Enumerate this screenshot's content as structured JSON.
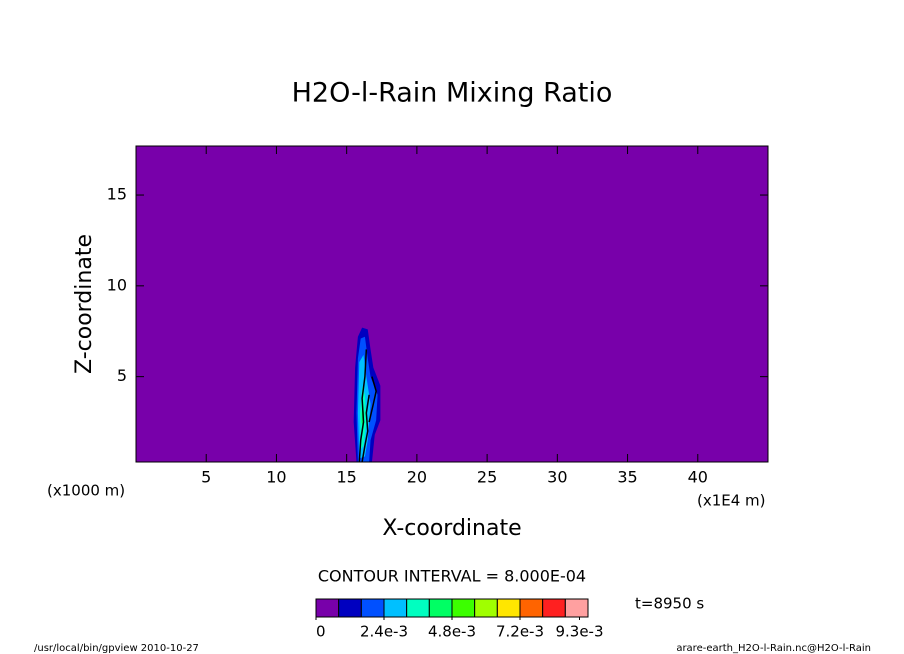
{
  "chart_data": {
    "type": "contour",
    "title": "H2O-l-Rain Mixing Ratio",
    "x_label": "X-coordinate",
    "y_label": "Z-coordinate",
    "x_unit_left": "(x1000 m)",
    "x_unit_right": "(x1E4 m)",
    "contour_interval": "CONTOUR INTERVAL = 8.000E-04",
    "time_label": "t=8950 s",
    "footer_left": "/usr/local/bin/gpview  2010-10-27",
    "footer_right": "arare-earth_H2O-l-Rain.nc@H2O-l-Rain",
    "xlim": [
      0,
      45
    ],
    "ylim": [
      0.3,
      17.7
    ],
    "xticks": [
      5,
      10,
      15,
      20,
      25,
      30,
      35,
      40
    ],
    "yticks": [
      5,
      10,
      15
    ],
    "colorbar": {
      "levels": [
        0,
        0.0008,
        0.0016,
        0.0024,
        0.0032,
        0.004,
        0.0048,
        0.0056,
        0.0064,
        0.0072,
        0.008,
        0.0088,
        0.0096
      ],
      "colors": [
        "#7800aa",
        "#0000c0",
        "#0050ff",
        "#00c0ff",
        "#00ffc0",
        "#00ff64",
        "#3cff00",
        "#a0ff00",
        "#ffe600",
        "#ff6400",
        "#ff2020",
        "#ffa0a0"
      ],
      "ticks": [
        {
          "value": 0,
          "label": "0"
        },
        {
          "value": 0.0024,
          "label": "2.4e-3"
        },
        {
          "value": 0.0048,
          "label": "4.8e-3"
        },
        {
          "value": 0.0072,
          "label": "7.2e-3"
        },
        {
          "value": 0.0093,
          "label": "9.3e-3"
        }
      ]
    },
    "contour_regions": [
      {
        "level": 1,
        "x": [
          15.7,
          15.5,
          15.6,
          15.8,
          16.1,
          16.5,
          16.7,
          16.9,
          17.4,
          17.4,
          17.0,
          16.8
        ],
        "y": [
          0.3,
          2.5,
          5.5,
          7.2,
          7.7,
          7.6,
          6.5,
          5.5,
          4.5,
          2.6,
          1.8,
          0.3
        ]
      },
      {
        "level": 2,
        "x": [
          15.8,
          15.7,
          15.8,
          16.0,
          16.3,
          16.5,
          16.7,
          17.2,
          17.1,
          16.7,
          16.6
        ],
        "y": [
          0.3,
          3,
          6,
          7.1,
          7.2,
          6,
          5,
          4,
          2.6,
          1.5,
          0.3
        ]
      },
      {
        "level": 3,
        "x": [
          15.9,
          15.8,
          15.9,
          16.2,
          16.4,
          16.7,
          16.5,
          16.3
        ],
        "y": [
          0.5,
          3,
          5.8,
          6.2,
          5,
          3.5,
          1.5,
          0.6
        ]
      },
      {
        "level": 4,
        "x": [
          16.0,
          15.95,
          16.1,
          16.3,
          16.4,
          16.2
        ],
        "y": [
          1,
          3,
          4.5,
          4,
          2.5,
          1.2
        ]
      },
      {
        "level": 5,
        "x": [
          16.05,
          16.1,
          16.25,
          16.2
        ],
        "y": [
          2.5,
          3.5,
          3,
          2.2
        ]
      }
    ],
    "contour_lines": [
      {
        "x": [
          15.9,
          16.0,
          16.2,
          16.1,
          16.3,
          16.4
        ],
        "y": [
          0.3,
          1.5,
          2.5,
          3.8,
          5,
          6.5
        ]
      },
      {
        "x": [
          16.6,
          16.9,
          17.1,
          16.8
        ],
        "y": [
          2.5,
          3.5,
          4.2,
          5
        ]
      },
      {
        "x": [
          16.1,
          16.3,
          16.5,
          16.4,
          16.6
        ],
        "y": [
          0.3,
          1.2,
          2.0,
          3.0,
          4.0
        ]
      }
    ]
  }
}
